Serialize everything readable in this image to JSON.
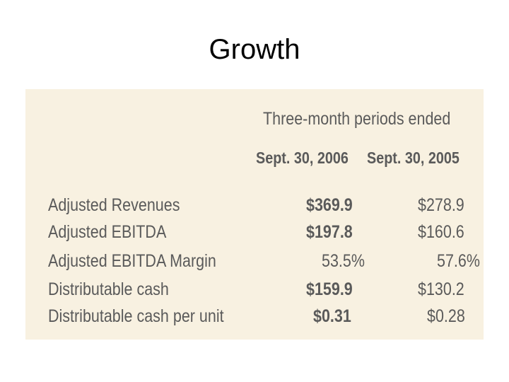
{
  "slide": {
    "title": "Growth"
  },
  "table": {
    "group_header": "Three-month periods ended",
    "columns": [
      "Sept. 30, 2006",
      "Sept. 30, 2005"
    ],
    "rows": [
      {
        "label": "Adjusted Revenues",
        "values": [
          "$369.9",
          "$278.9"
        ]
      },
      {
        "label": "Adjusted EBITDA",
        "values": [
          "$197.8",
          "$160.6"
        ]
      },
      {
        "label": "Adjusted EBITDA Margin",
        "values": [
          "53.5%",
          "57.6%"
        ]
      },
      {
        "label": "Distributable cash",
        "values": [
          "$159.9",
          "$130.2"
        ]
      },
      {
        "label": "Distributable cash per unit",
        "values": [
          "$0.31",
          "$0.28"
        ]
      }
    ]
  },
  "colors": {
    "panel_background": "#f8f1e1",
    "table_text": "#5a5a5a",
    "title_text": "#000000"
  }
}
